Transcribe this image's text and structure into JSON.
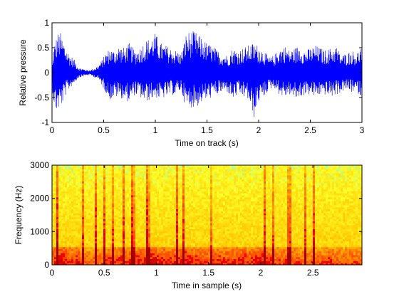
{
  "chart_data": [
    {
      "type": "line",
      "title": "",
      "xlabel": "Time on track (s)",
      "ylabel": "Relative pressure",
      "xlim": [
        0,
        3
      ],
      "ylim": [
        -1,
        1
      ],
      "xticks": [
        0,
        0.5,
        1,
        1.5,
        2,
        2.5,
        3
      ],
      "xtick_labels": [
        "0",
        "0.5",
        "1",
        "1.5",
        "2",
        "2.5",
        "3"
      ],
      "yticks": [
        -1,
        -0.5,
        0,
        0.5,
        1
      ],
      "ytick_labels": [
        "-1",
        "-0.5",
        "0",
        "0.5",
        "1"
      ],
      "grid": false,
      "series": [
        {
          "color": "#0000ff",
          "envelope": {
            "t": [
              0.0,
              0.02,
              0.04,
              0.06,
              0.08,
              0.1,
              0.12,
              0.15,
              0.18,
              0.22,
              0.26,
              0.3,
              0.35,
              0.4,
              0.45,
              0.48,
              0.52,
              0.56,
              0.6,
              0.65,
              0.7,
              0.75,
              0.8,
              0.85,
              0.9,
              0.95,
              1.0,
              1.05,
              1.1,
              1.15,
              1.2,
              1.25,
              1.3,
              1.35,
              1.4,
              1.45,
              1.5,
              1.55,
              1.6,
              1.65,
              1.7,
              1.75,
              1.8,
              1.85,
              1.9,
              1.95,
              2.0,
              2.05,
              2.1,
              2.15,
              2.2,
              2.25,
              2.3,
              2.35,
              2.4,
              2.45,
              2.5,
              2.55,
              2.6,
              2.65,
              2.7,
              2.75,
              2.8,
              2.85,
              2.9,
              2.95,
              3.0
            ],
            "max": [
              0.1,
              0.55,
              0.7,
              0.8,
              0.82,
              0.7,
              0.6,
              0.45,
              0.35,
              0.25,
              0.1,
              0.08,
              0.05,
              0.08,
              0.15,
              0.25,
              0.4,
              0.5,
              0.45,
              0.55,
              0.5,
              0.6,
              0.45,
              0.5,
              0.65,
              0.7,
              0.8,
              0.6,
              0.55,
              0.5,
              0.45,
              0.4,
              0.8,
              0.85,
              0.8,
              0.7,
              0.6,
              0.55,
              0.45,
              0.4,
              0.35,
              0.5,
              0.45,
              0.5,
              0.55,
              0.6,
              0.55,
              0.45,
              0.3,
              0.35,
              0.5,
              0.55,
              0.45,
              0.5,
              0.55,
              0.45,
              0.5,
              0.55,
              0.5,
              0.45,
              0.5,
              0.55,
              0.35,
              0.4,
              0.45,
              0.4,
              0.55
            ],
            "min": [
              -0.3,
              -0.65,
              -0.8,
              -0.75,
              -0.7,
              -0.65,
              -0.5,
              -0.4,
              -0.3,
              -0.2,
              -0.1,
              -0.08,
              -0.05,
              -0.08,
              -0.15,
              -0.25,
              -0.4,
              -0.55,
              -0.5,
              -0.5,
              -0.55,
              -0.6,
              -0.45,
              -0.5,
              -0.6,
              -0.55,
              -0.5,
              -0.55,
              -0.5,
              -0.45,
              -0.45,
              -0.35,
              -0.75,
              -0.7,
              -0.7,
              -0.6,
              -0.55,
              -0.5,
              -0.45,
              -0.4,
              -0.4,
              -0.55,
              -0.45,
              -0.5,
              -0.55,
              -0.95,
              -0.6,
              -0.5,
              -0.35,
              -0.3,
              -0.45,
              -0.5,
              -0.45,
              -0.55,
              -0.5,
              -0.45,
              -0.45,
              -0.5,
              -0.45,
              -0.45,
              -0.5,
              -0.45,
              -0.4,
              -0.35,
              -0.4,
              -0.4,
              -0.5
            ]
          }
        }
      ]
    },
    {
      "type": "heatmap",
      "title": "",
      "xlabel": "Time in sample (s)",
      "ylabel": "Frequency (Hz)",
      "xlim": [
        0,
        2.97
      ],
      "ylim": [
        0,
        3000
      ],
      "xticks": [
        0,
        0.5,
        1,
        1.5,
        2,
        2.5
      ],
      "xtick_labels": [
        "0",
        "0.5",
        "1",
        "1.5",
        "2",
        "2.5"
      ],
      "yticks": [
        0,
        1000,
        2000,
        3000
      ],
      "ytick_labels": [
        "0",
        "1000",
        "2000",
        "3000"
      ],
      "grid": false,
      "colormap": "hot",
      "colors": {
        "low": "#a00000",
        "mid": "#ff4000",
        "high": "#ffff40",
        "peak": "#80ffd0"
      },
      "band_intensity": {
        "t": [
          0.0,
          0.05,
          0.1,
          0.15,
          0.2,
          0.25,
          0.3,
          0.35,
          0.4,
          0.45,
          0.5,
          0.55,
          0.6,
          0.65,
          0.7,
          0.75,
          0.8,
          0.85,
          0.9,
          0.95,
          1.0,
          1.05,
          1.1,
          1.15,
          1.2,
          1.25,
          1.3,
          1.35,
          1.4,
          1.45,
          1.5,
          1.55,
          1.6,
          1.65,
          1.7,
          1.75,
          1.8,
          1.85,
          1.9,
          1.95,
          2.0,
          2.05,
          2.1,
          2.15,
          2.2,
          2.25,
          2.3,
          2.35,
          2.4,
          2.45,
          2.5,
          2.55,
          2.6,
          2.65,
          2.7,
          2.75,
          2.8,
          2.85,
          2.9,
          2.95
        ],
        "low_freq_energy": [
          0.6,
          0.9,
          0.95,
          0.8,
          0.7,
          0.85,
          0.6,
          0.5,
          0.55,
          0.65,
          0.6,
          0.8,
          0.7,
          0.75,
          0.7,
          0.8,
          0.75,
          0.85,
          0.9,
          0.95,
          0.9,
          0.85,
          0.8,
          0.75,
          0.8,
          0.9,
          0.95,
          0.85,
          0.8,
          0.75,
          0.7,
          0.75,
          0.8,
          0.7,
          0.75,
          0.8,
          0.85,
          0.8,
          0.75,
          0.9,
          0.95,
          0.85,
          0.7,
          0.6,
          0.65,
          0.75,
          0.7,
          0.65,
          0.6,
          0.55,
          0.6,
          0.65,
          0.6,
          0.7,
          0.65,
          0.6,
          0.55,
          0.6,
          0.65,
          0.6
        ]
      }
    }
  ]
}
